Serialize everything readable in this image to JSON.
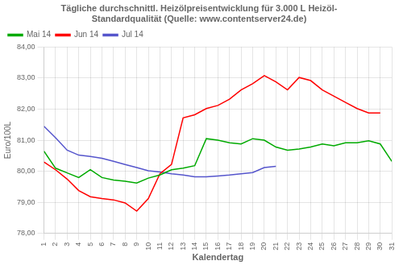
{
  "chart_data": {
    "type": "line",
    "title": [
      "Tägliche durchschnittl. Heizölpreisentwicklung für 3.000 L Heizöl-",
      "Standardqualität (Quelle: www.contentserver24.de)"
    ],
    "xlabel": "Kalendertag",
    "ylabel": "Euro/100L",
    "xlim": [
      1,
      31
    ],
    "xticks": [
      1,
      2,
      3,
      4,
      5,
      6,
      7,
      8,
      9,
      10,
      11,
      12,
      13,
      14,
      15,
      16,
      17,
      18,
      19,
      20,
      21,
      22,
      23,
      24,
      25,
      26,
      27,
      28,
      29,
      30,
      31
    ],
    "ylim": [
      78.0,
      84.0
    ],
    "yticks": [
      {
        "value": 78.0,
        "label": "78,00"
      },
      {
        "value": 79.0,
        "label": "79,00"
      },
      {
        "value": 80.0,
        "label": "80,00"
      },
      {
        "value": 81.0,
        "label": "81,00"
      },
      {
        "value": 82.0,
        "label": "82,00"
      },
      {
        "value": 83.0,
        "label": "83,00"
      },
      {
        "value": 84.0,
        "label": "84,00"
      }
    ],
    "grid": true,
    "legend": "upper left",
    "series": [
      {
        "name": "Mai 14",
        "color": "#00AA00",
        "x": [
          1,
          2,
          3,
          4,
          5,
          6,
          7,
          8,
          9,
          10,
          11,
          12,
          13,
          14,
          15,
          16,
          17,
          18,
          19,
          20,
          21,
          22,
          23,
          24,
          25,
          26,
          27,
          28,
          29,
          30,
          31
        ],
        "values": [
          80.65,
          80.1,
          79.95,
          79.8,
          80.05,
          79.8,
          79.72,
          79.68,
          79.62,
          79.78,
          79.88,
          80.05,
          80.1,
          80.18,
          81.05,
          81.0,
          80.92,
          80.88,
          81.05,
          81.0,
          80.78,
          80.68,
          80.72,
          80.78,
          80.88,
          80.82,
          80.92,
          80.92,
          80.98,
          80.88,
          80.32
        ]
      },
      {
        "name": "Jun 14",
        "color": "#FF0000",
        "x": [
          1,
          2,
          3,
          4,
          5,
          6,
          7,
          8,
          9,
          10,
          11,
          12,
          13,
          14,
          15,
          16,
          17,
          18,
          19,
          20,
          21,
          22,
          23,
          24,
          25,
          26,
          27,
          28,
          29,
          30
        ],
        "values": [
          80.3,
          80.05,
          79.75,
          79.38,
          79.18,
          79.12,
          79.08,
          78.98,
          78.72,
          79.12,
          79.92,
          80.22,
          81.72,
          81.82,
          82.02,
          82.12,
          82.32,
          82.62,
          82.82,
          83.08,
          82.88,
          82.62,
          83.02,
          82.92,
          82.62,
          82.42,
          82.22,
          82.02,
          81.88,
          81.88
        ]
      },
      {
        "name": "Jul 14",
        "color": "#5555CC",
        "x": [
          1,
          2,
          3,
          4,
          5,
          6,
          7,
          8,
          9,
          10,
          11,
          12,
          13,
          14,
          15,
          16,
          17,
          18,
          19,
          20,
          21
        ],
        "values": [
          81.45,
          81.08,
          80.68,
          80.52,
          80.48,
          80.42,
          80.32,
          80.22,
          80.12,
          80.02,
          79.98,
          79.92,
          79.88,
          79.82,
          79.82,
          79.85,
          79.88,
          79.92,
          79.96,
          80.12,
          80.16
        ]
      }
    ]
  }
}
